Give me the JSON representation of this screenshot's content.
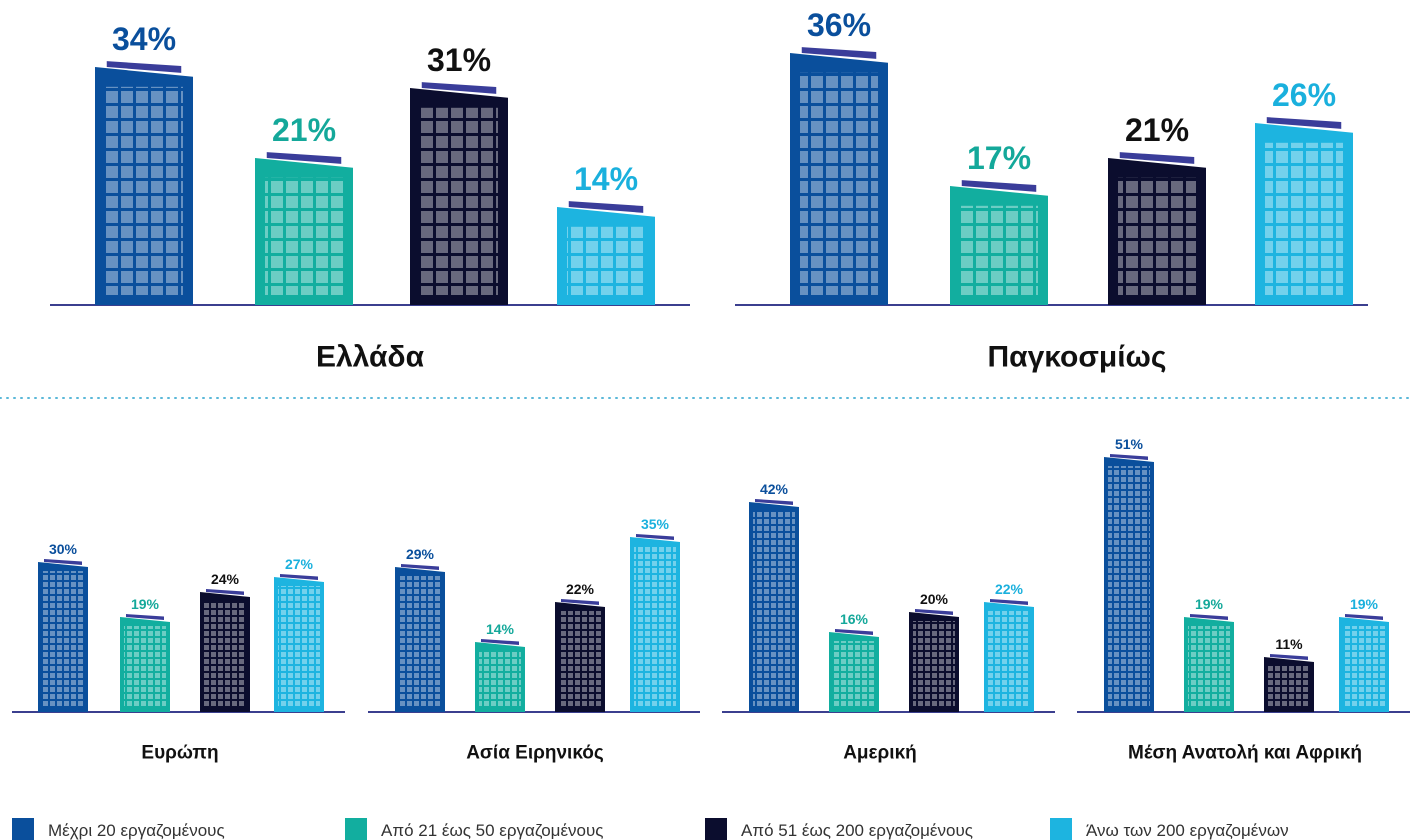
{
  "chart_data": [
    {
      "type": "bar",
      "title": "Ελλάδα",
      "values": [
        34,
        21,
        31,
        14
      ],
      "value_labels": [
        "34%",
        "21%",
        "31%",
        "14%"
      ]
    },
    {
      "type": "bar",
      "title": "Παγκοσμίως",
      "values": [
        36,
        17,
        21,
        26
      ],
      "value_labels": [
        "36%",
        "17%",
        "21%",
        "26%"
      ]
    },
    {
      "type": "bar",
      "title": "Ευρώπη",
      "values": [
        30,
        19,
        24,
        27
      ],
      "value_labels": [
        "30%",
        "19%",
        "24%",
        "27%"
      ]
    },
    {
      "type": "bar",
      "title": "Ασία Ειρηνικός",
      "values": [
        29,
        14,
        22,
        35
      ],
      "value_labels": [
        "29%",
        "14%",
        "22%",
        "35%"
      ]
    },
    {
      "type": "bar",
      "title": "Αμερική",
      "values": [
        42,
        16,
        20,
        22
      ],
      "value_labels": [
        "42%",
        "16%",
        "20%",
        "22%"
      ]
    },
    {
      "type": "bar",
      "title": "Μέση Ανατολή και Αφρική",
      "values": [
        51,
        19,
        11,
        19
      ],
      "value_labels": [
        "51%",
        "19%",
        "11%",
        "19%"
      ]
    }
  ],
  "legend": {
    "names": [
      "Μέχρι 20 εργαζομένους",
      "Από 21 έως 50 εργαζομένους",
      "Από 51 έως 200 εργαζομένους",
      "Άνω των 200 εργαζομένων"
    ],
    "colors": [
      "#0a4f9c",
      "#12ae9f",
      "#0b0d2e",
      "#1db4e0"
    ],
    "label_colors": [
      "#0a4f9c",
      "#14a89a",
      "#111111",
      "#1ab0dd"
    ]
  }
}
